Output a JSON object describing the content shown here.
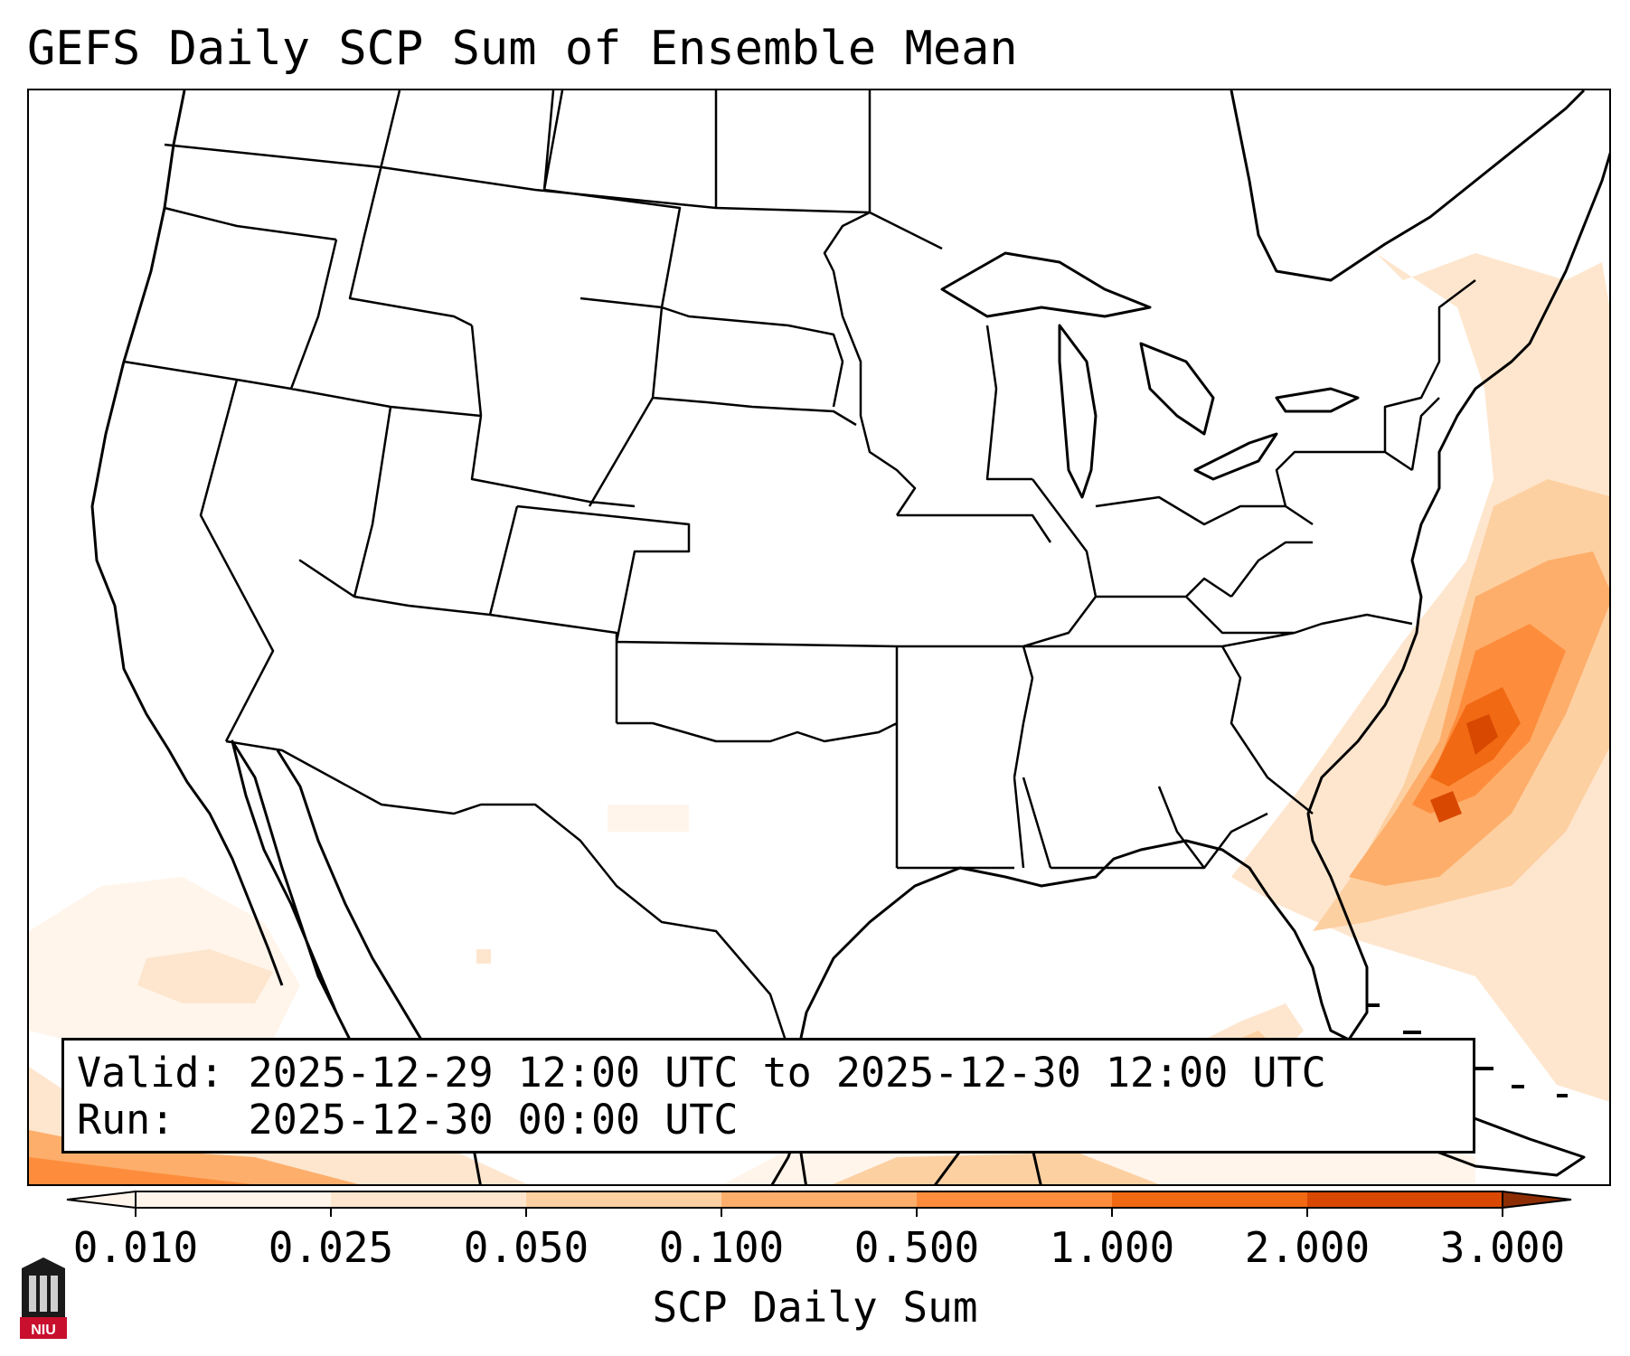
{
  "title": "GEFS Daily SCP Sum of Ensemble Mean",
  "info": {
    "valid": "Valid: 2025-12-29 12:00 UTC to 2025-12-30 12:00 UTC",
    "run": "Run:   2025-12-30 00:00 UTC"
  },
  "colorbar": {
    "label": "SCP Daily Sum",
    "ticks": [
      "0.010",
      "0.025",
      "0.050",
      "0.100",
      "0.500",
      "1.000",
      "2.000",
      "3.000"
    ],
    "colors": [
      "#fff5eb",
      "#fee6ce",
      "#fdd0a2",
      "#fdae6b",
      "#fd8d3c",
      "#f16913",
      "#d94801",
      "#8c2d04"
    ],
    "extend": "both"
  },
  "logo": {
    "text": "NIU"
  },
  "colors": {
    "outline": "#000000",
    "background": "#ffffff"
  }
}
